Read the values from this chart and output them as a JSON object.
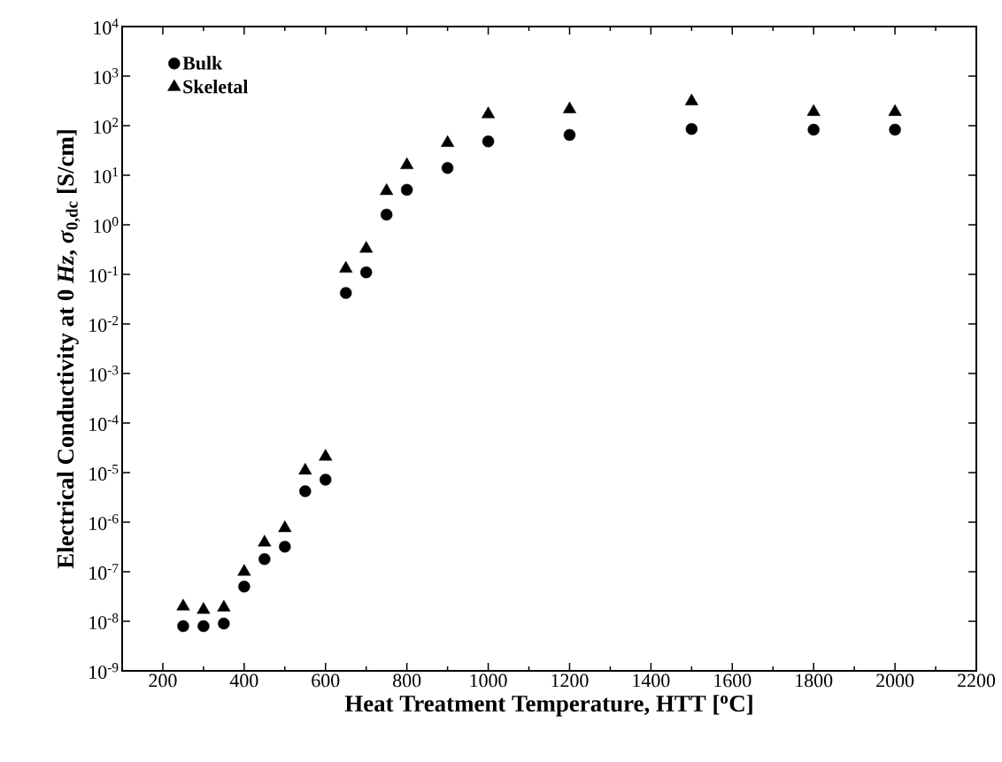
{
  "chart_data": {
    "type": "scatter",
    "xlabel": "Heat Treatment Temperature, HTT [$^{o}$C]",
    "ylabel": "Electrical Conductivity at 0 *Hz*, *σ*$_{0,dc}$ [S/cm]",
    "x": [
      250,
      300,
      350,
      400,
      450,
      500,
      550,
      600,
      650,
      700,
      750,
      800,
      900,
      1000,
      1200,
      1500,
      1800,
      2000
    ],
    "series": [
      {
        "name": "Bulk",
        "color": "#000000",
        "marker": "circle",
        "values": [
          8e-09,
          8e-09,
          9e-09,
          5e-08,
          1.8e-07,
          3.2e-07,
          4.2e-06,
          7.2e-06,
          0.042,
          0.11,
          1.6,
          5.1,
          14,
          48,
          65,
          86,
          83,
          83
        ]
      },
      {
        "name": "Skeletal",
        "color": "#000000",
        "marker": "triangle",
        "values": [
          2e-08,
          1.7e-08,
          1.9e-08,
          1e-07,
          3.9e-07,
          7.6e-07,
          1.1e-05,
          2.1e-05,
          0.13,
          0.33,
          4.8,
          16,
          45,
          170,
          215,
          310,
          190,
          190
        ]
      }
    ],
    "log": "y",
    "xlim": [
      100,
      2200
    ],
    "xticks": [
      200,
      400,
      600,
      800,
      1000,
      1200,
      1400,
      1600,
      1800,
      2000,
      2200
    ],
    "ylim": [
      1e-09,
      10000
    ],
    "yticks": [
      {
        "value": 1e-09,
        "label": "10$^{-9}$"
      },
      {
        "value": 1e-08,
        "label": "10$^{-8}$"
      },
      {
        "value": 1e-07,
        "label": "10$^{-7}$"
      },
      {
        "value": 1e-06,
        "label": "10$^{-6}$"
      },
      {
        "value": 1e-05,
        "label": "10$^{-5}$"
      },
      {
        "value": 0.0001,
        "label": "10$^{-4}$"
      },
      {
        "value": 0.001,
        "label": "10$^{-3}$"
      },
      {
        "value": 0.01,
        "label": "10$^{-2}$"
      },
      {
        "value": 0.1,
        "label": "10$^{-1}$"
      },
      {
        "value": 1,
        "label": "10$^{0}$"
      },
      {
        "value": 10,
        "label": "10$^{1}$"
      },
      {
        "value": 100,
        "label": "10$^{2}$"
      },
      {
        "value": 1000,
        "label": "10$^{3}$"
      },
      {
        "value": 10000,
        "label": "10$^{4}$"
      }
    ],
    "legend": "top left"
  }
}
